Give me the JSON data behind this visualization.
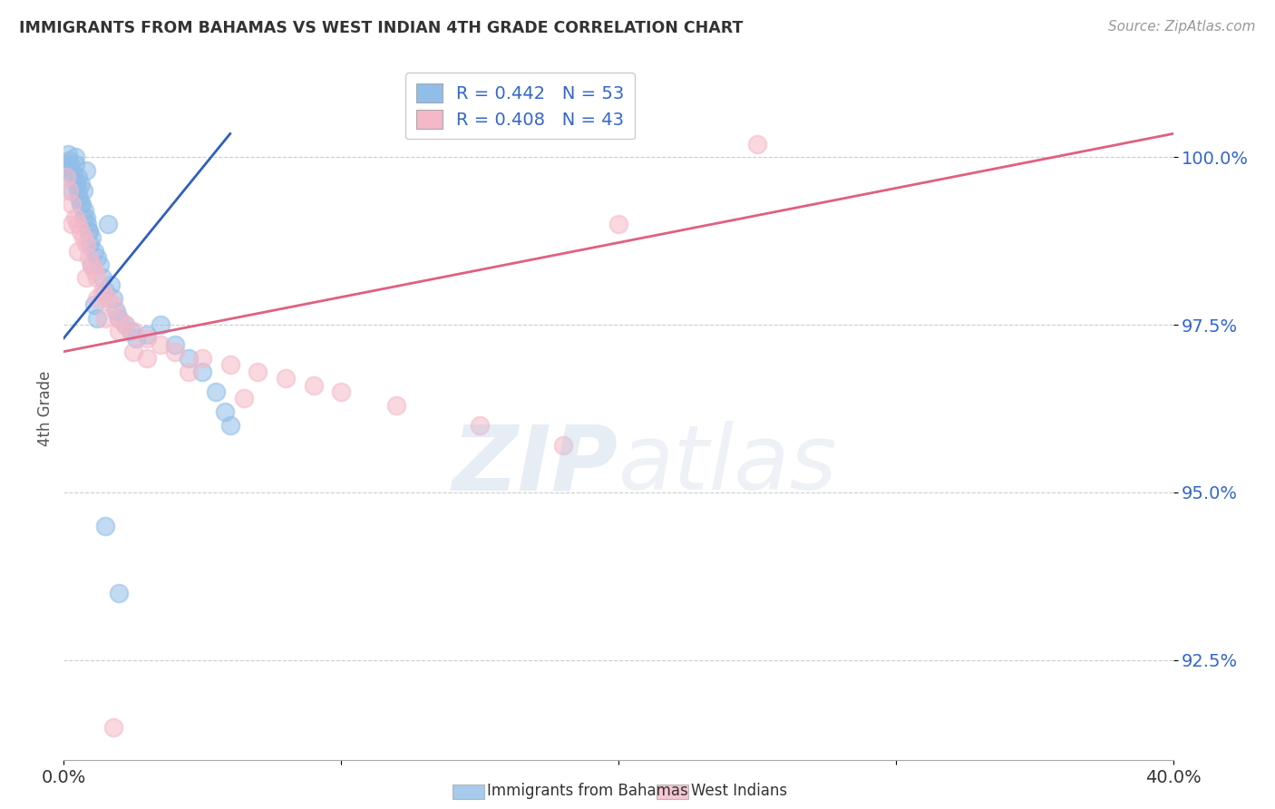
{
  "title": "IMMIGRANTS FROM BAHAMAS VS WEST INDIAN 4TH GRADE CORRELATION CHART",
  "source": "Source: ZipAtlas.com",
  "ylabel": "4th Grade",
  "watermark": "ZIPatlas",
  "xlim": [
    0.0,
    40.0
  ],
  "ylim": [
    91.0,
    101.5
  ],
  "yticks": [
    92.5,
    95.0,
    97.5,
    100.0
  ],
  "ytick_labels": [
    "92.5%",
    "95.0%",
    "97.5%",
    "100.0%"
  ],
  "xtick_positions": [
    0.0,
    10.0,
    20.0,
    30.0,
    40.0
  ],
  "xtick_labels_show": [
    "0.0%",
    "",
    "",
    "",
    "40.0%"
  ],
  "legend1_label": "R = 0.442   N = 53",
  "legend2_label": "R = 0.408   N = 43",
  "blue_color": "#90bee8",
  "pink_color": "#f5b8c8",
  "blue_line_color": "#3060bb",
  "pink_line_color": "#e06080",
  "background_color": "#ffffff",
  "grid_color": "#cccccc",
  "title_color": "#333333",
  "source_color": "#999999",
  "blue_line_x": [
    0.0,
    6.0
  ],
  "blue_line_y": [
    97.3,
    100.35
  ],
  "pink_line_x": [
    0.0,
    40.0
  ],
  "pink_line_y": [
    97.1,
    100.35
  ],
  "blue_x": [
    0.1,
    0.15,
    0.2,
    0.25,
    0.3,
    0.35,
    0.4,
    0.45,
    0.5,
    0.55,
    0.6,
    0.65,
    0.7,
    0.75,
    0.8,
    0.85,
    0.9,
    0.95,
    1.0,
    1.1,
    1.2,
    1.3,
    1.4,
    1.5,
    1.6,
    1.7,
    1.8,
    1.9,
    2.0,
    2.2,
    2.4,
    2.6,
    3.0,
    3.5,
    4.0,
    4.5,
    5.0,
    5.5,
    5.8,
    6.0,
    0.2,
    0.3,
    0.4,
    0.5,
    0.6,
    0.7,
    0.8,
    0.9,
    1.0,
    1.1,
    1.2,
    1.5,
    2.0
  ],
  "blue_y": [
    99.9,
    100.05,
    99.8,
    99.85,
    99.7,
    99.75,
    99.9,
    99.6,
    99.5,
    99.4,
    99.6,
    99.3,
    99.5,
    99.2,
    99.1,
    99.0,
    98.9,
    98.7,
    98.8,
    98.6,
    98.5,
    98.4,
    98.2,
    98.0,
    99.0,
    98.1,
    97.9,
    97.7,
    97.6,
    97.5,
    97.4,
    97.3,
    97.35,
    97.5,
    97.2,
    97.0,
    96.8,
    96.5,
    96.2,
    96.0,
    99.95,
    99.5,
    100.0,
    99.7,
    99.3,
    99.1,
    99.8,
    98.9,
    98.4,
    97.8,
    97.6,
    94.5,
    93.5
  ],
  "pink_x": [
    0.1,
    0.2,
    0.3,
    0.4,
    0.5,
    0.6,
    0.7,
    0.8,
    0.9,
    1.0,
    1.1,
    1.2,
    1.4,
    1.6,
    1.8,
    2.0,
    2.2,
    2.5,
    3.0,
    3.5,
    4.0,
    5.0,
    6.0,
    7.0,
    8.0,
    9.0,
    10.0,
    12.0,
    15.0,
    18.0,
    0.3,
    0.5,
    0.8,
    1.2,
    1.5,
    2.0,
    2.5,
    3.0,
    4.5,
    6.5,
    20.0,
    25.0,
    1.8
  ],
  "pink_y": [
    99.7,
    99.5,
    99.3,
    99.1,
    99.0,
    98.9,
    98.8,
    98.7,
    98.5,
    98.4,
    98.3,
    98.2,
    98.0,
    97.9,
    97.8,
    97.6,
    97.5,
    97.4,
    97.3,
    97.2,
    97.1,
    97.0,
    96.9,
    96.8,
    96.7,
    96.6,
    96.5,
    96.3,
    96.0,
    95.7,
    99.0,
    98.6,
    98.2,
    97.9,
    97.6,
    97.4,
    97.1,
    97.0,
    96.8,
    96.4,
    99.0,
    100.2,
    91.5
  ]
}
